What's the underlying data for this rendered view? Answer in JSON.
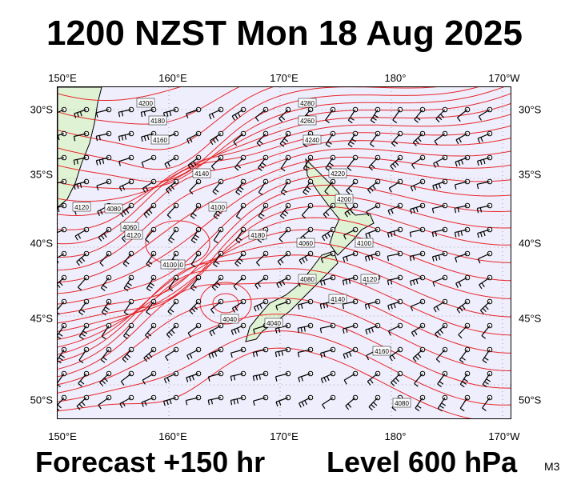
{
  "title": "1200 NZST Mon 18 Aug 2025",
  "forecast": "Forecast +150 hr",
  "level": "Level 600 hPa",
  "model_tag": "M3",
  "axes": {
    "top": [
      "150°E",
      "160°E",
      "170°E",
      "180°",
      "170°W"
    ],
    "bottom": [
      "150°E",
      "160°E",
      "170°E",
      "180°",
      "170°W"
    ],
    "left": [
      "30°S",
      "35°S",
      "40°S",
      "45°S",
      "50°S"
    ],
    "right": [
      "30°S",
      "35°S",
      "40°S",
      "45°S",
      "50°S"
    ]
  },
  "colors": {
    "ocean": "#eeeefc",
    "land": "#dff3d4",
    "contour": "#e8262a",
    "wind": "#000000"
  },
  "contour_labels": [
    "4200",
    "4280",
    "4180",
    "4260",
    "4160",
    "4240",
    "4140",
    "4220",
    "4120",
    "4200",
    "4100",
    "4080",
    "4060",
    "4040",
    "4080",
    "4100",
    "4120",
    "4140",
    "4160",
    "4180",
    "4120",
    "4100",
    "4040",
    "4040",
    "4060",
    "4080"
  ]
}
